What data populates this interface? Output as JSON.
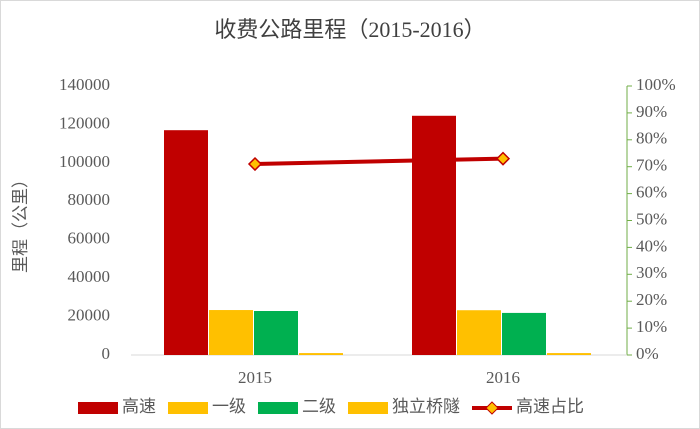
{
  "chart_data": {
    "type": "bar",
    "title": "收费公路里程（2015-2016）",
    "y_label": "里程（公里）",
    "categories": [
      "2015",
      "2016"
    ],
    "series": [
      {
        "name": "高速",
        "color": "#c00000",
        "values": [
          117000,
          124500
        ]
      },
      {
        "name": "一级",
        "color": "#ffc000",
        "values": [
          23400,
          23300
        ]
      },
      {
        "name": "二级",
        "color": "#00b050",
        "values": [
          22900,
          21900
        ]
      },
      {
        "name": "独立桥隧",
        "color": "#ffc000",
        "values": [
          1000,
          1000
        ]
      },
      {
        "name": "高速占比",
        "type": "line",
        "axis": "y2",
        "color": "#c00000",
        "marker_color": "#ffc000",
        "values": [
          71,
          73
        ]
      }
    ],
    "ylim": [
      0,
      140000
    ],
    "yticks": [
      0,
      20000,
      40000,
      60000,
      80000,
      100000,
      120000,
      140000
    ],
    "y2lim": [
      0,
      100
    ],
    "y2ticks": [
      {
        "value": 0,
        "label": "0%"
      },
      {
        "value": 10,
        "label": "10%"
      },
      {
        "value": 20,
        "label": "20%"
      },
      {
        "value": 30,
        "label": "30%"
      },
      {
        "value": 40,
        "label": "40%"
      },
      {
        "value": 50,
        "label": "50%"
      },
      {
        "value": 60,
        "label": "60%"
      },
      {
        "value": 70,
        "label": "70%"
      },
      {
        "value": 80,
        "label": "80%"
      },
      {
        "value": 90,
        "label": "90%"
      },
      {
        "value": 100,
        "label": "100%"
      }
    ],
    "legend": "bottom",
    "y2_axis_color": "#70ad47"
  }
}
